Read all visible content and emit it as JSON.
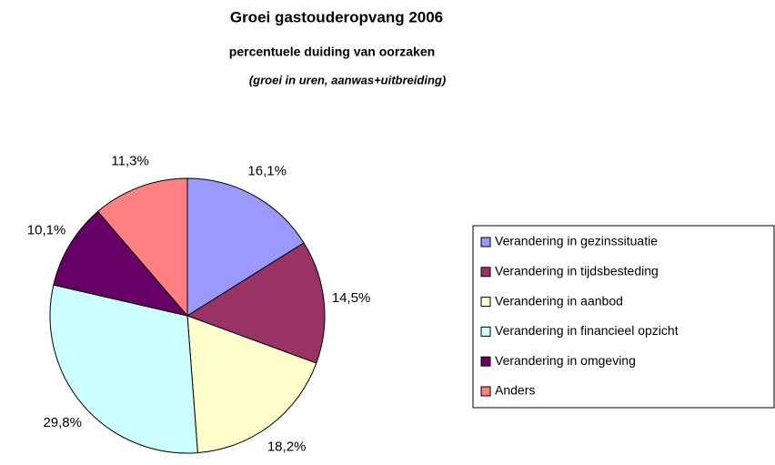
{
  "chart_data": {
    "type": "pie",
    "title": "Groei gastouderopvang 2006",
    "subtitle": "percentuele duiding van oorzaken",
    "note": "(groei in uren, aanwas+uitbreiding)",
    "categories": [
      "Verandering in gezinssituatie",
      "Verandering in tijdsbesteding",
      "Verandering in aanbod",
      "Verandering in financieel opzicht",
      "Verandering in omgeving",
      "Anders"
    ],
    "values": [
      16.1,
      14.5,
      18.2,
      29.8,
      10.1,
      11.3
    ],
    "value_labels": [
      "16,1%",
      "14,5%",
      "18,2%",
      "29,8%",
      "10,1%",
      "11,3%"
    ],
    "colors": [
      "#9999ff",
      "#993366",
      "#ffffcc",
      "#ccffff",
      "#660066",
      "#ff8080"
    ],
    "legend": "right"
  }
}
